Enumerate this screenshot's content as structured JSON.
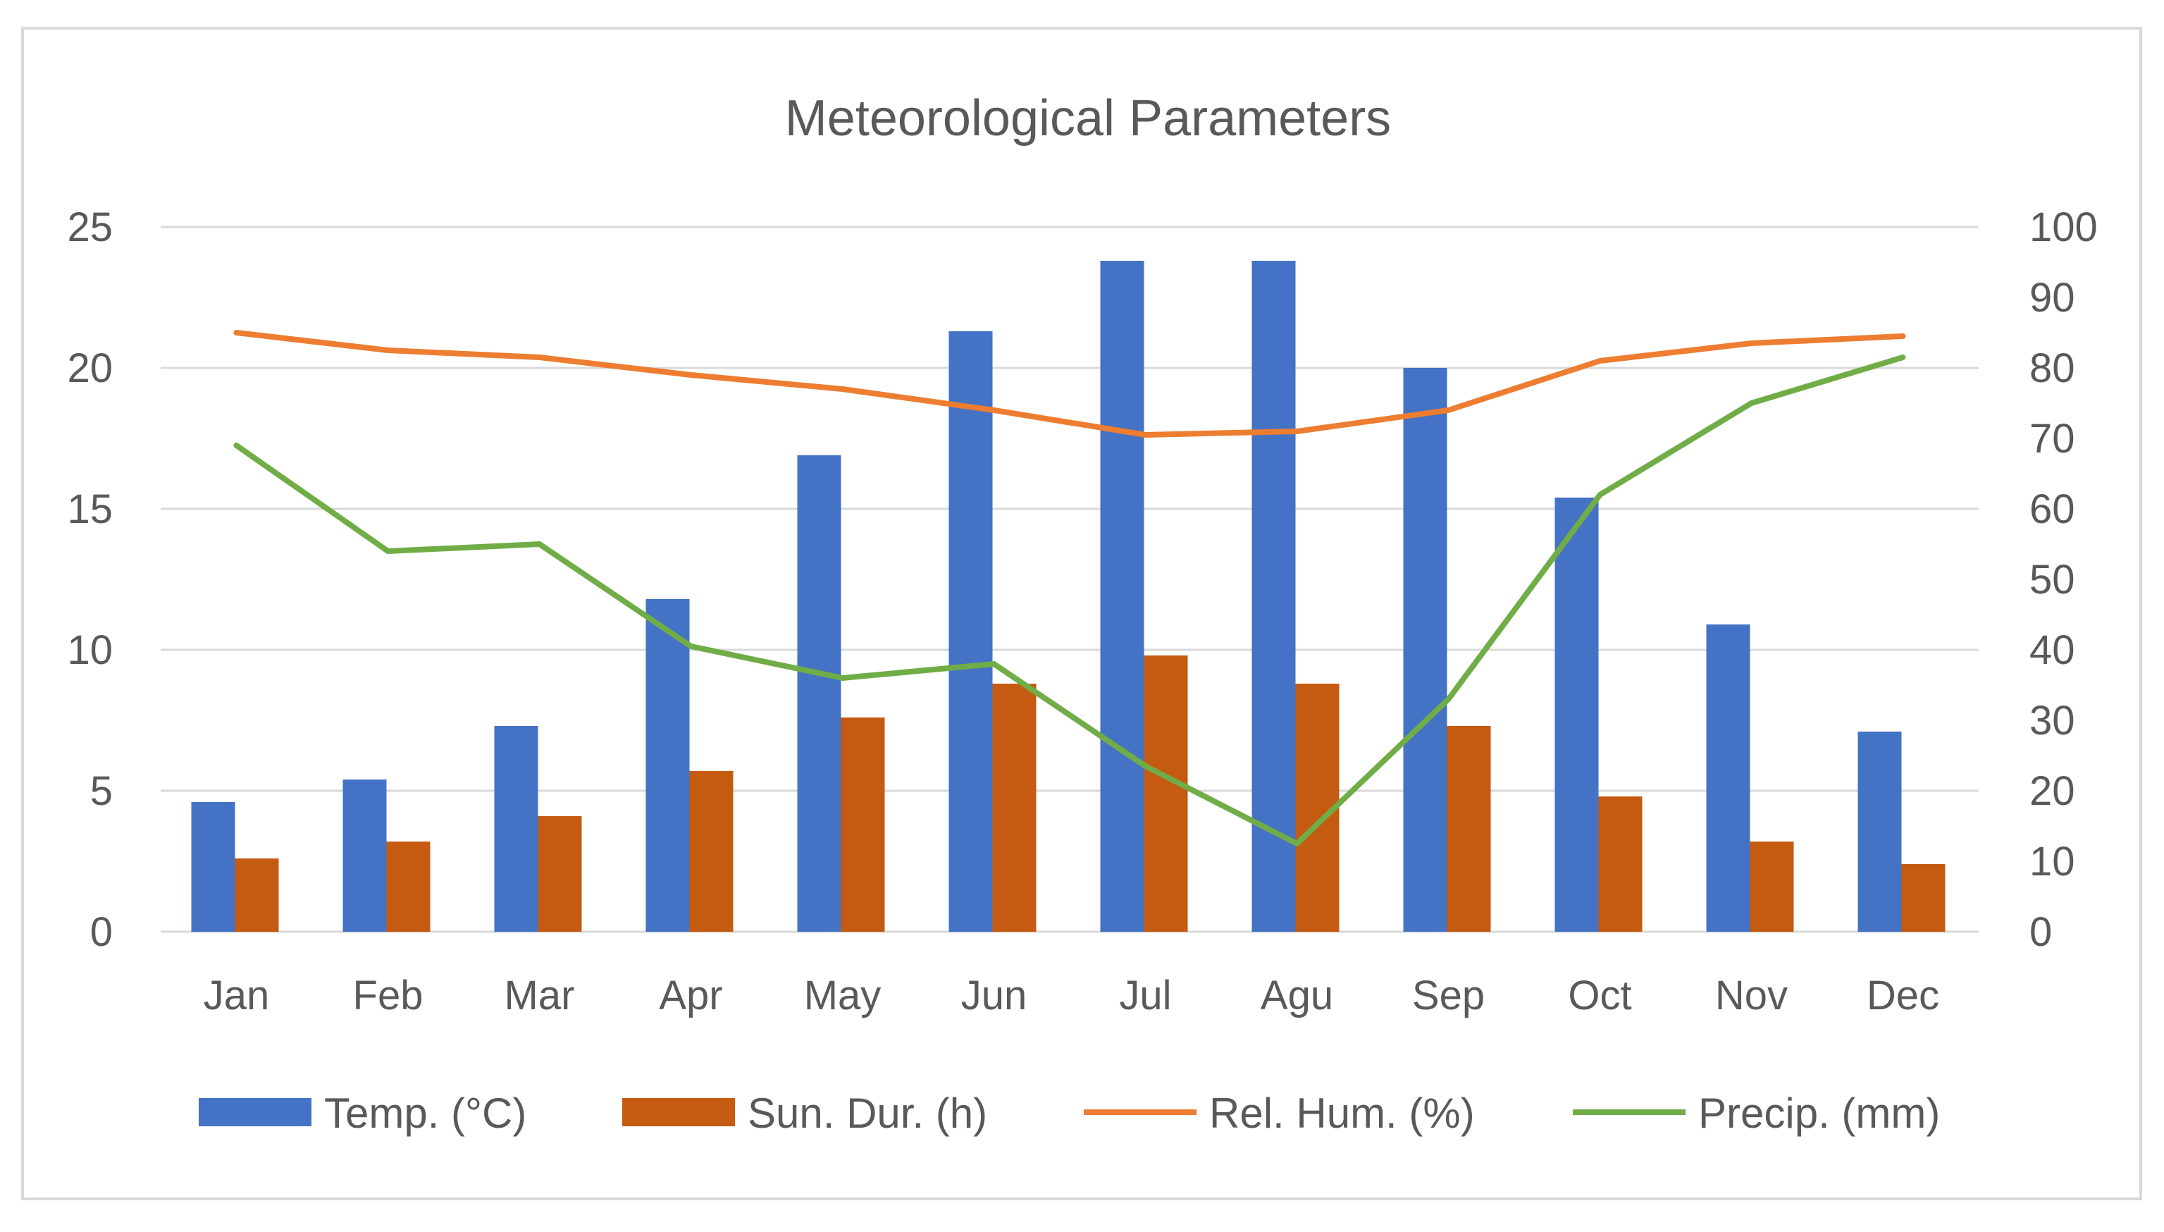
{
  "chart_data": {
    "type": "bar+line",
    "title": "Meteorological Parameters",
    "categories": [
      "Jan",
      "Feb",
      "Mar",
      "Apr",
      "May",
      "Jun",
      "Jul",
      "Agu",
      "Sep",
      "Oct",
      "Nov",
      "Dec"
    ],
    "left_axis": {
      "min": 0,
      "max": 25,
      "step": 5,
      "ticks": [
        "0",
        "5",
        "10",
        "15",
        "20",
        "25"
      ]
    },
    "right_axis": {
      "min": 0,
      "max": 100,
      "step": 10,
      "ticks": [
        "0",
        "10",
        "20",
        "30",
        "40",
        "50",
        "60",
        "70",
        "80",
        "90",
        "100"
      ]
    },
    "grid": true,
    "legend_position": "bottom",
    "series": [
      {
        "name": "Temp. (°C)",
        "type": "bar",
        "axis": "left",
        "color": "#4472c4",
        "values": [
          4.6,
          5.4,
          7.3,
          11.8,
          16.9,
          21.3,
          23.8,
          23.8,
          20.0,
          15.4,
          10.9,
          7.1
        ]
      },
      {
        "name": "Sun. Dur. (h)",
        "type": "bar",
        "axis": "left",
        "color": "#c55a11",
        "values": [
          2.6,
          3.2,
          4.1,
          5.7,
          7.6,
          8.8,
          9.8,
          8.8,
          7.3,
          4.8,
          3.2,
          2.4
        ]
      },
      {
        "name": "Rel. Hum. (%)",
        "type": "line",
        "axis": "right",
        "color": "#ed7d31",
        "values": [
          85,
          82.5,
          81.5,
          79,
          77,
          74,
          70.5,
          71,
          74,
          81,
          83.5,
          84.5
        ]
      },
      {
        "name": "Precip. (mm)",
        "type": "line",
        "axis": "right",
        "color": "#70ad47",
        "values": [
          69,
          54,
          55,
          40.5,
          36,
          38,
          23.5,
          12.5,
          33,
          62,
          75,
          81.5
        ]
      }
    ]
  }
}
